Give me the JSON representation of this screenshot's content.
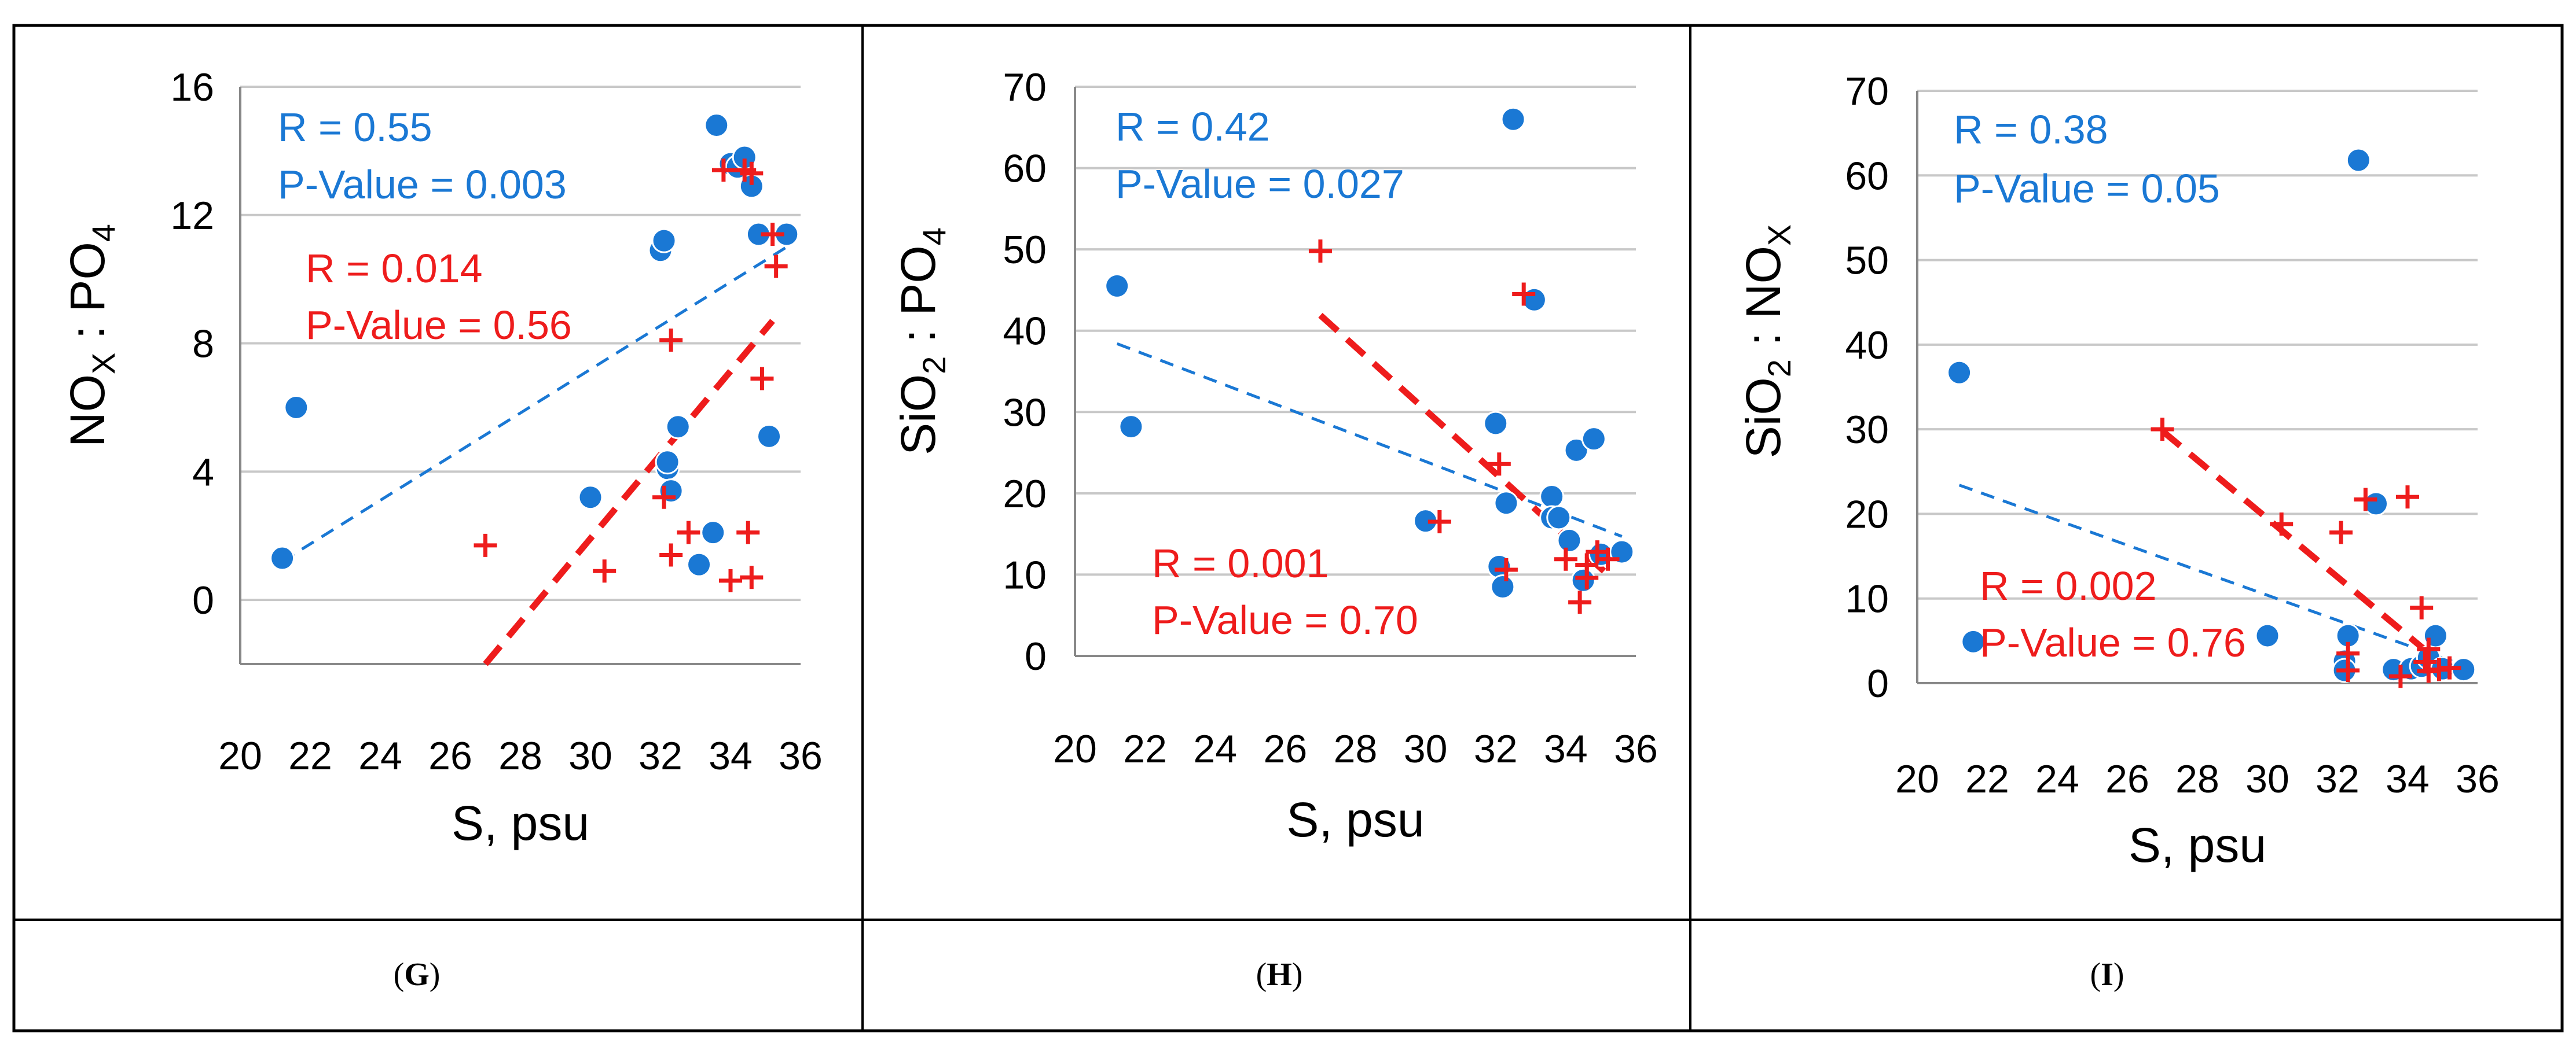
{
  "colors": {
    "blue": "#1a78d4",
    "red": "#ee1c1c",
    "grid": "#c8c8c8",
    "axis": "#888888",
    "border": "#000000"
  },
  "chart_data": [
    {
      "type": "scatter",
      "panel_label": "G",
      "xlabel": "S, psu",
      "ylabel_main": "NO",
      "ylabel_sub1": "X",
      "ylabel_mid": " : PO",
      "ylabel_sub2": "4",
      "xlim": [
        20,
        36
      ],
      "ylim": [
        -2,
        16
      ],
      "xticks": [
        20,
        22,
        24,
        26,
        28,
        30,
        32,
        34,
        36
      ],
      "yticks": [
        0,
        4,
        8,
        12,
        16
      ],
      "blue_stats": [
        "R = 0.55",
        "P-Value = 0.003"
      ],
      "red_stats": [
        "R = 0.014",
        "P-Value = 0.56"
      ],
      "series": [
        {
          "name": "blue",
          "marker": "circle",
          "x": [
            21.2,
            21.6,
            30.0,
            32.0,
            32.1,
            32.2,
            32.2,
            32.3,
            32.5,
            33.1,
            33.5,
            33.6,
            34.0,
            34.2,
            34.4,
            34.6,
            34.8,
            35.1,
            35.6
          ],
          "y": [
            1.3,
            6.0,
            3.2,
            10.9,
            11.2,
            4.1,
            4.3,
            3.4,
            5.4,
            1.1,
            2.1,
            14.8,
            13.6,
            13.5,
            13.8,
            12.9,
            11.4,
            5.1,
            11.4
          ]
        },
        {
          "name": "red",
          "marker": "plus",
          "x": [
            27.0,
            30.4,
            32.1,
            32.3,
            32.3,
            32.8,
            33.8,
            34.0,
            34.4,
            34.5,
            34.6,
            34.6,
            34.9,
            35.2,
            35.3
          ],
          "y": [
            1.7,
            0.9,
            3.2,
            8.1,
            1.4,
            2.1,
            13.4,
            0.6,
            13.4,
            2.1,
            0.7,
            13.3,
            6.9,
            11.4,
            10.4
          ]
        }
      ],
      "trendlines": [
        {
          "name": "blue",
          "x": [
            21.2,
            35.6
          ],
          "y": [
            1.2,
            11.0
          ]
        },
        {
          "name": "red",
          "x": [
            27.0,
            35.2
          ],
          "y": [
            -2.0,
            8.7
          ]
        }
      ]
    },
    {
      "type": "scatter",
      "panel_label": "H",
      "xlabel": "S, psu",
      "ylabel_main": "SiO",
      "ylabel_sub1": "2",
      "ylabel_mid": " : PO",
      "ylabel_sub2": "4",
      "xlim": [
        20,
        36
      ],
      "ylim": [
        0,
        70
      ],
      "xticks": [
        20,
        22,
        24,
        26,
        28,
        30,
        32,
        34,
        36
      ],
      "yticks": [
        0,
        10,
        20,
        30,
        40,
        50,
        60,
        70
      ],
      "blue_stats": [
        "R = 0.42",
        "P-Value = 0.027"
      ],
      "red_stats": [
        "R = 0.001",
        "P-Value = 0.70"
      ],
      "series": [
        {
          "name": "blue",
          "marker": "circle",
          "x": [
            21.2,
            21.6,
            30.0,
            32.0,
            32.1,
            32.2,
            32.3,
            32.5,
            33.1,
            33.6,
            33.6,
            33.8,
            34.1,
            34.3,
            34.5,
            34.8,
            35.0,
            35.6
          ],
          "y": [
            45.5,
            28.2,
            16.6,
            28.6,
            11.0,
            8.5,
            18.8,
            66.0,
            43.8,
            19.6,
            17.0,
            17.0,
            14.2,
            25.3,
            9.3,
            26.7,
            12.5,
            12.8
          ]
        },
        {
          "name": "red",
          "marker": "plus",
          "x": [
            27.0,
            30.4,
            32.1,
            32.3,
            32.8,
            34.0,
            34.4,
            34.6,
            34.6,
            34.9,
            35.2
          ],
          "y": [
            49.8,
            16.5,
            23.6,
            10.6,
            44.5,
            11.9,
            6.6,
            9.6,
            11.2,
            12.8,
            11.9
          ]
        }
      ],
      "trendlines": [
        {
          "name": "blue",
          "x": [
            21.2,
            35.6
          ],
          "y": [
            38.4,
            14.7
          ]
        },
        {
          "name": "red",
          "x": [
            27.0,
            35.2
          ],
          "y": [
            41.9,
            10.0
          ]
        }
      ]
    },
    {
      "type": "scatter",
      "panel_label": "I",
      "xlabel": "S, psu",
      "ylabel_main": "SiO",
      "ylabel_sub1": "2",
      "ylabel_mid": " : NO",
      "ylabel_sub2": "X",
      "xlim": [
        20,
        36
      ],
      "ylim": [
        0,
        70
      ],
      "xticks": [
        20,
        22,
        24,
        26,
        28,
        30,
        32,
        34,
        36
      ],
      "yticks": [
        0,
        10,
        20,
        30,
        40,
        50,
        60,
        70
      ],
      "blue_stats": [
        "R = 0.38",
        "P-Value = 0.05"
      ],
      "red_stats": [
        "R = 0.002",
        "P-Value = 0.76"
      ],
      "series": [
        {
          "name": "blue",
          "marker": "circle",
          "x": [
            21.2,
            21.6,
            30.0,
            32.2,
            32.2,
            32.3,
            32.6,
            33.1,
            33.6,
            34.1,
            34.4,
            34.6,
            34.8,
            35.0,
            35.6
          ],
          "y": [
            36.7,
            4.9,
            5.6,
            2.6,
            1.5,
            5.6,
            61.8,
            21.2,
            1.6,
            1.7,
            2.0,
            3.0,
            5.6,
            1.7,
            1.6
          ]
        },
        {
          "name": "red",
          "marker": "plus",
          "x": [
            27.0,
            30.4,
            32.1,
            32.3,
            32.3,
            32.8,
            33.8,
            34.0,
            34.4,
            34.5,
            34.6,
            34.6,
            34.9,
            35.2
          ],
          "y": [
            30.0,
            18.8,
            17.8,
            3.5,
            1.5,
            21.7,
            0.8,
            22.0,
            8.9,
            2.5,
            4.0,
            1.4,
            1.6,
            1.8
          ]
        }
      ],
      "trendlines": [
        {
          "name": "blue",
          "x": [
            21.2,
            35.6
          ],
          "y": [
            23.4,
            2.1
          ]
        },
        {
          "name": "red",
          "x": [
            27.0,
            35.2
          ],
          "y": [
            29.8,
            1.5
          ]
        }
      ]
    }
  ]
}
